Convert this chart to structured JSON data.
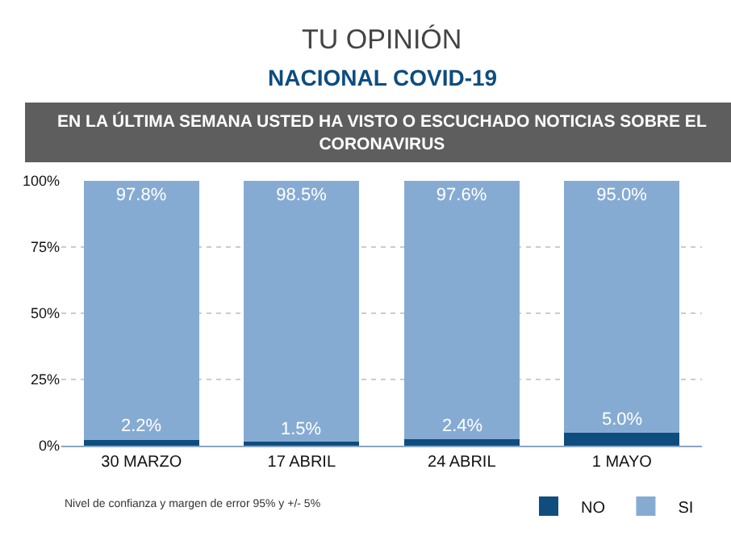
{
  "chart_data": {
    "type": "bar",
    "stacked": true,
    "title": "TU OPINIÓN",
    "subtitle": "NACIONAL COVID-19",
    "annotations": [
      "EN LA ÚLTIMA SEMANA USTED HA VISTO O ESCUCHADO NOTICIAS SOBRE EL CORONAVIRUS",
      "Nivel de confianza y margen de error 95% y +/- 5%"
    ],
    "categories": [
      "30 MARZO",
      "17 ABRIL",
      "24 ABRIL",
      "1 MAYO"
    ],
    "series": [
      {
        "name": "NO",
        "color": "#0e4d7e",
        "values": [
          2.2,
          1.5,
          2.4,
          5.0
        ],
        "value_labels": [
          "2.2%",
          "1.5%",
          "2.4%",
          "5.0%"
        ]
      },
      {
        "name": "SI",
        "color": "#86abd3",
        "values": [
          97.8,
          98.5,
          97.6,
          95.0
        ],
        "value_labels": [
          "97.8%",
          "98.5%",
          "97.6%",
          "95.0%"
        ]
      }
    ],
    "ylim": [
      0,
      100
    ],
    "yticks": [
      {
        "value": 0,
        "label": "0%"
      },
      {
        "value": 25,
        "label": "25%"
      },
      {
        "value": 50,
        "label": "50%"
      },
      {
        "value": 75,
        "label": "75%"
      },
      {
        "value": 100,
        "label": "100%"
      }
    ],
    "grid": "y",
    "legend": "bottom"
  }
}
